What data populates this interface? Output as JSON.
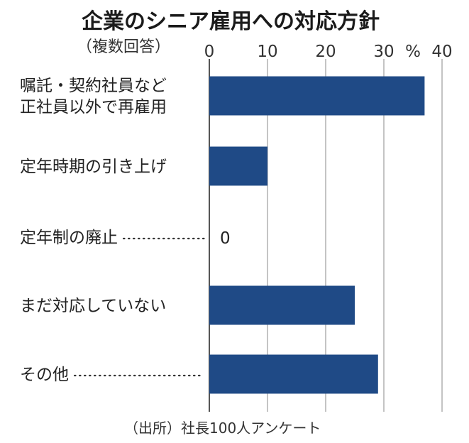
{
  "chart_data": {
    "type": "bar",
    "orientation": "horizontal",
    "title": "企業のシニア雇用への対応方針",
    "subtitle": "（複数回答）",
    "unit": "%",
    "xlim": [
      0,
      40
    ],
    "ticks": [
      0,
      10,
      20,
      30,
      40
    ],
    "grid": true,
    "bar_color": "#1f4a86",
    "categories": [
      [
        "嘱託・契約社員など",
        "正社員以外で再雇用"
      ],
      [
        "定年時期の引き上げ"
      ],
      [
        "定年制の廃止"
      ],
      [
        "まだ対応していない"
      ],
      [
        "その他"
      ]
    ],
    "values": [
      37,
      10,
      0,
      25,
      29
    ],
    "data_labels": [
      "",
      "",
      "0",
      "",
      ""
    ],
    "leaders": [
      false,
      false,
      true,
      false,
      true
    ]
  },
  "source": "（出所）社長100人アンケート"
}
